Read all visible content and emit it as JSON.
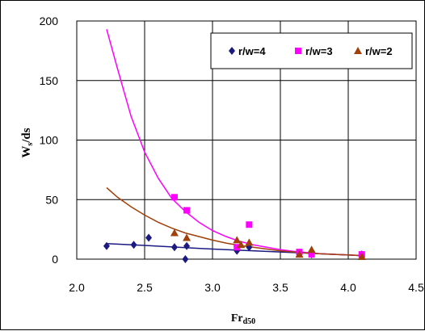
{
  "chart_data": {
    "type": "scatter",
    "title": "",
    "xlabel": "Fr",
    "xlabel_sub": "d50",
    "ylabel": "W",
    "ylabel_sub": "s",
    "ylabel_rest": "/ds",
    "xlim": [
      2.0,
      4.5
    ],
    "ylim": [
      0,
      200
    ],
    "xticks": [
      "2.0",
      "2.5",
      "3.0",
      "3.5",
      "4.0",
      "4.5"
    ],
    "yticks": [
      "0",
      "50",
      "100",
      "150",
      "200"
    ],
    "grid": true,
    "legend_position": "top-right",
    "series": [
      {
        "name": "r/w=4",
        "color": "#1a1a80",
        "marker": "diamond",
        "points": [
          [
            2.22,
            11
          ],
          [
            2.42,
            12
          ],
          [
            2.53,
            18
          ],
          [
            2.72,
            10
          ],
          [
            2.8,
            0
          ],
          [
            2.81,
            11
          ],
          [
            3.18,
            7
          ],
          [
            3.27,
            10
          ],
          [
            3.64,
            5
          ],
          [
            3.73,
            4
          ],
          [
            4.1,
            4
          ]
        ],
        "trend": [
          [
            2.22,
            13
          ],
          [
            2.5,
            11.5
          ],
          [
            3.0,
            8.5
          ],
          [
            3.5,
            6.0
          ],
          [
            4.1,
            3.0
          ]
        ]
      },
      {
        "name": "r/w=3",
        "color": "#ff00ff",
        "marker": "square",
        "points": [
          [
            2.72,
            52
          ],
          [
            2.81,
            41
          ],
          [
            3.18,
            10
          ],
          [
            3.27,
            29
          ],
          [
            3.64,
            6
          ],
          [
            3.73,
            4
          ],
          [
            4.1,
            4
          ]
        ],
        "trend": [
          [
            2.22,
            193
          ],
          [
            2.3,
            160
          ],
          [
            2.4,
            120
          ],
          [
            2.5,
            90
          ],
          [
            2.6,
            68
          ],
          [
            2.7,
            51
          ],
          [
            2.8,
            40
          ],
          [
            2.9,
            31
          ],
          [
            3.0,
            24
          ],
          [
            3.1,
            19
          ],
          [
            3.2,
            15
          ],
          [
            3.3,
            12
          ],
          [
            3.4,
            10
          ],
          [
            3.5,
            8
          ],
          [
            3.6,
            6.5
          ],
          [
            3.7,
            5.5
          ],
          [
            3.8,
            4.5
          ],
          [
            3.9,
            4
          ],
          [
            4.0,
            3.5
          ],
          [
            4.1,
            3
          ]
        ]
      },
      {
        "name": "r/w=2",
        "color": "#a0400a",
        "marker": "triangle",
        "points": [
          [
            2.72,
            22
          ],
          [
            2.81,
            18
          ],
          [
            3.18,
            16
          ],
          [
            3.21,
            12
          ],
          [
            3.27,
            14
          ],
          [
            3.64,
            4
          ],
          [
            3.73,
            8
          ],
          [
            4.1,
            2
          ]
        ],
        "trend": [
          [
            2.22,
            60
          ],
          [
            2.3,
            52
          ],
          [
            2.4,
            44
          ],
          [
            2.5,
            37
          ],
          [
            2.6,
            31
          ],
          [
            2.7,
            26
          ],
          [
            2.8,
            22
          ],
          [
            2.9,
            19
          ],
          [
            3.0,
            16
          ],
          [
            3.1,
            13.5
          ],
          [
            3.2,
            11.5
          ],
          [
            3.3,
            10
          ],
          [
            3.4,
            8.5
          ],
          [
            3.5,
            7
          ],
          [
            3.6,
            6
          ],
          [
            3.7,
            5
          ],
          [
            3.8,
            4.5
          ],
          [
            3.9,
            4
          ],
          [
            4.0,
            3.5
          ],
          [
            4.1,
            3
          ]
        ]
      }
    ]
  }
}
